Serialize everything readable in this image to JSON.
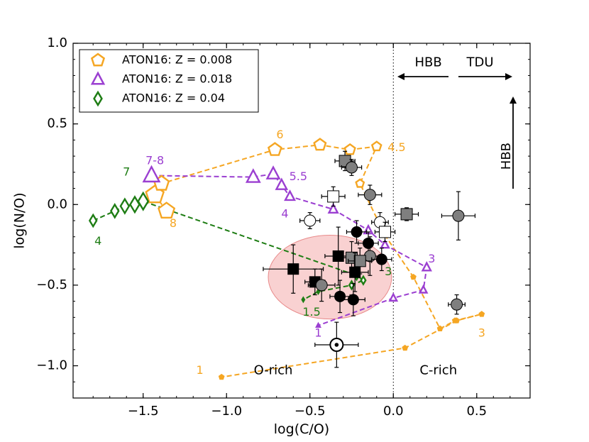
{
  "chart_data": {
    "type": "scatter",
    "xlabel": "log(C/O)",
    "ylabel": "log(N/O)",
    "xlim": [
      -1.92,
      0.82
    ],
    "ylim": [
      -1.2,
      1.0
    ],
    "grid": false,
    "legend_placement": "top-left",
    "x_ticks": [
      -1.5,
      -1.0,
      -0.5,
      0.0,
      0.5
    ],
    "y_ticks": [
      1.0,
      0.5,
      0.0,
      -0.5,
      -1.0
    ],
    "x_tick_labels": [
      "−1.5",
      "−1.0",
      "−0.5",
      "0.0",
      "0.5"
    ],
    "y_tick_labels": [
      "1.0",
      "0.5",
      "0.0",
      "−0.5",
      "−1.0"
    ],
    "colors": {
      "orange": "#F5A623",
      "purple": "#9B3FD1",
      "green": "#1E7D14",
      "ellipse_fill": "#F8C6C6",
      "ellipse_stroke": "#E88A8A",
      "gray": "#7F7F7F"
    },
    "legend": [
      {
        "label": "ATON16: Z = 0.008",
        "color": "#F5A623",
        "marker": "pentagon"
      },
      {
        "label": "ATON16: Z = 0.018",
        "color": "#9B3FD1",
        "marker": "triangle"
      },
      {
        "label": "ATON16: Z = 0.04",
        "color": "#1E7D14",
        "marker": "diamond"
      }
    ],
    "series": [
      {
        "name": "ATON16: Z = 0.008",
        "color": "#F5A623",
        "marker": "pentagon",
        "x": [
          -1.36,
          -1.43,
          -1.39,
          -0.71,
          -0.44,
          -0.26,
          -0.1,
          -0.2,
          -0.05,
          0.12,
          0.28,
          0.37,
          0.53,
          0.38,
          0.07,
          -1.03
        ],
        "y": [
          -0.04,
          0.06,
          0.13,
          0.34,
          0.37,
          0.34,
          0.36,
          0.13,
          -0.19,
          -0.45,
          -0.77,
          -0.72,
          -0.68,
          -0.72,
          -0.89,
          -1.07
        ],
        "sizes": [
          1.3,
          1.45,
          1.2,
          1.05,
          0.95,
          0.85,
          0.75,
          0.65,
          0.55,
          0.5,
          0.45,
          0.45,
          0.5,
          0.45,
          0.45,
          0.45
        ]
      },
      {
        "name": "ATON16: Z = 0.018",
        "color": "#9B3FD1",
        "marker": "triangle",
        "x": [
          -1.45,
          -0.84,
          -0.72,
          -0.67,
          -0.62,
          -0.36,
          -0.15,
          -0.05,
          0.2,
          0.18,
          0.0,
          -0.45
        ],
        "y": [
          0.18,
          0.17,
          0.19,
          0.12,
          0.05,
          -0.03,
          -0.16,
          -0.25,
          -0.39,
          -0.53,
          -0.58,
          -0.75
        ],
        "sizes": [
          1.35,
          1.1,
          1.05,
          0.9,
          0.8,
          0.75,
          0.7,
          0.65,
          0.7,
          0.6,
          0.6,
          0.55
        ]
      },
      {
        "name": "ATON16: Z = 0.04",
        "color": "#1E7D14",
        "marker": "diamond",
        "x": [
          -1.8,
          -1.67,
          -1.61,
          -1.55,
          -1.5,
          -0.22,
          -0.18,
          -0.25,
          -0.45,
          -0.54
        ],
        "y": [
          -0.1,
          -0.04,
          -0.01,
          0.0,
          0.02,
          -0.44,
          -0.47,
          -0.5,
          -0.54,
          -0.59
        ],
        "sizes": [
          0.9,
          1.0,
          1.1,
          1.2,
          1.3,
          0.65,
          0.6,
          0.6,
          0.55,
          0.5
        ]
      }
    ],
    "mass_labels": [
      {
        "text": "6",
        "x": -0.68,
        "y": 0.43,
        "series": "ATON16: Z = 0.008"
      },
      {
        "text": "4.5",
        "x": 0.02,
        "y": 0.35,
        "series": "ATON16: Z = 0.008"
      },
      {
        "text": "8",
        "x": -1.32,
        "y": -0.12,
        "series": "ATON16: Z = 0.008"
      },
      {
        "text": "3",
        "x": 0.53,
        "y": -0.8,
        "series": "ATON16: Z = 0.008"
      },
      {
        "text": "1",
        "x": -1.16,
        "y": -1.03,
        "series": "ATON16: Z = 0.008"
      },
      {
        "text": "7-8",
        "x": -1.43,
        "y": 0.27,
        "series": "ATON16: Z = 0.018"
      },
      {
        "text": "5.5",
        "x": -0.57,
        "y": 0.17,
        "series": "ATON16: Z = 0.018"
      },
      {
        "text": "4",
        "x": -0.65,
        "y": -0.06,
        "series": "ATON16: Z = 0.018"
      },
      {
        "text": "3",
        "x": 0.23,
        "y": -0.34,
        "series": "ATON16: Z = 0.018"
      },
      {
        "text": "1",
        "x": -0.45,
        "y": -0.8,
        "series": "ATON16: Z = 0.018"
      },
      {
        "text": "7",
        "x": -1.6,
        "y": 0.2,
        "series": "ATON16: Z = 0.04"
      },
      {
        "text": "4",
        "x": -1.77,
        "y": -0.23,
        "series": "ATON16: Z = 0.04"
      },
      {
        "text": "3",
        "x": -0.03,
        "y": -0.42,
        "series": "ATON16: Z = 0.04"
      },
      {
        "text": "1.5",
        "x": -0.49,
        "y": -0.67,
        "series": "ATON16: Z = 0.04"
      }
    ],
    "observations": [
      {
        "type": "filled_square",
        "x": -0.29,
        "y": 0.27,
        "xerr": 0.06,
        "yerr": 0.06
      },
      {
        "type": "filled_circle",
        "x": -0.25,
        "y": 0.23,
        "xerr": 0.06,
        "yerr": 0.05
      },
      {
        "type": "open_square",
        "x": -0.36,
        "y": 0.05,
        "xerr": 0.07,
        "yerr": 0.06
      },
      {
        "type": "filled_circle",
        "x": -0.14,
        "y": 0.06,
        "xerr": 0.07,
        "yerr": 0.06
      },
      {
        "type": "open_circle",
        "x": -0.5,
        "y": -0.1,
        "xerr": 0.06,
        "yerr": 0.05
      },
      {
        "type": "open_circle",
        "x": -0.08,
        "y": -0.11,
        "xerr": 0.05,
        "yerr": 0.06
      },
      {
        "type": "open_square",
        "x": -0.05,
        "y": -0.17,
        "xerr": 0.06,
        "yerr": 0.06
      },
      {
        "type": "filled_square",
        "x": 0.08,
        "y": -0.06,
        "xerr": 0.07,
        "yerr": 0.04
      },
      {
        "type": "filled_circle",
        "x": 0.39,
        "y": -0.07,
        "xerr": 0.1,
        "yerr": 0.15
      },
      {
        "type": "black_circle",
        "x": -0.22,
        "y": -0.17,
        "xerr": 0.06,
        "yerr": 0.07
      },
      {
        "type": "black_circle",
        "x": -0.15,
        "y": -0.24,
        "xerr": 0.06,
        "yerr": 0.07
      },
      {
        "type": "black_square",
        "x": -0.33,
        "y": -0.32,
        "xerr": 0.08,
        "yerr": 0.18
      },
      {
        "type": "filled_circle",
        "x": -0.14,
        "y": -0.32,
        "xerr": 0.08,
        "yerr": 0.12
      },
      {
        "type": "filled_square",
        "x": -0.25,
        "y": -0.33,
        "xerr": 0.07,
        "yerr": 0.1
      },
      {
        "type": "filled_square",
        "x": -0.2,
        "y": -0.35,
        "xerr": 0.07,
        "yerr": 0.08
      },
      {
        "type": "black_circle",
        "x": -0.07,
        "y": -0.34,
        "xerr": 0.06,
        "yerr": 0.07
      },
      {
        "type": "black_square",
        "x": -0.6,
        "y": -0.4,
        "xerr": 0.18,
        "yerr": 0.15
      },
      {
        "type": "black_square",
        "x": -0.23,
        "y": -0.42,
        "xerr": 0.08,
        "yerr": 0.12
      },
      {
        "type": "black_square",
        "x": -0.47,
        "y": -0.48,
        "xerr": 0.06,
        "yerr": 0.08
      },
      {
        "type": "filled_circle",
        "x": -0.43,
        "y": -0.5,
        "xerr": 0.08,
        "yerr": 0.1
      },
      {
        "type": "black_circle",
        "x": -0.32,
        "y": -0.57,
        "xerr": 0.06,
        "yerr": 0.1
      },
      {
        "type": "black_circle",
        "x": -0.24,
        "y": -0.59,
        "xerr": 0.07,
        "yerr": 0.1
      },
      {
        "type": "filled_circle",
        "x": 0.38,
        "y": -0.62,
        "xerr": 0.05,
        "yerr": 0.06
      },
      {
        "type": "sun",
        "x": -0.34,
        "y": -0.87,
        "xerr": 0.13,
        "yerr": 0.14
      }
    ],
    "ellipse": {
      "cx": -0.38,
      "cy": -0.45,
      "rx": 0.37,
      "ry": 0.26
    },
    "annotations": [
      {
        "text": "O-rich",
        "x": -0.72,
        "y": -1.03
      },
      {
        "text": "C-rich",
        "x": 0.27,
        "y": -1.03
      },
      {
        "text": "HBB",
        "x": 0.21,
        "y": 0.88
      },
      {
        "text": "TDU",
        "x": 0.52,
        "y": 0.88
      },
      {
        "text": "HBB",
        "x": 0.68,
        "y": 0.3
      }
    ]
  }
}
